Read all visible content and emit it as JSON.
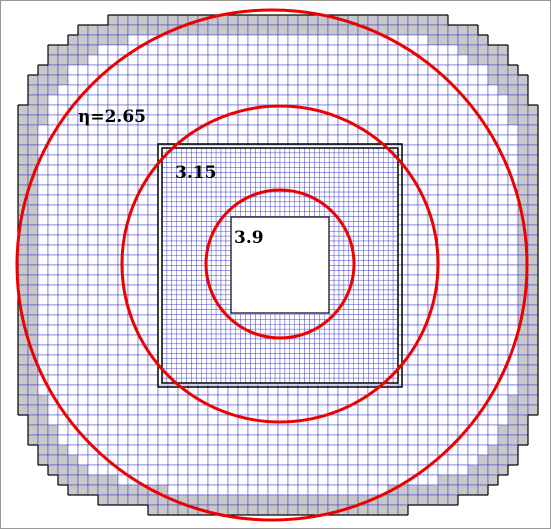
{
  "labels": {
    "outer": "η=2.65",
    "middle": "3.15",
    "inner": "3.9"
  }
}
